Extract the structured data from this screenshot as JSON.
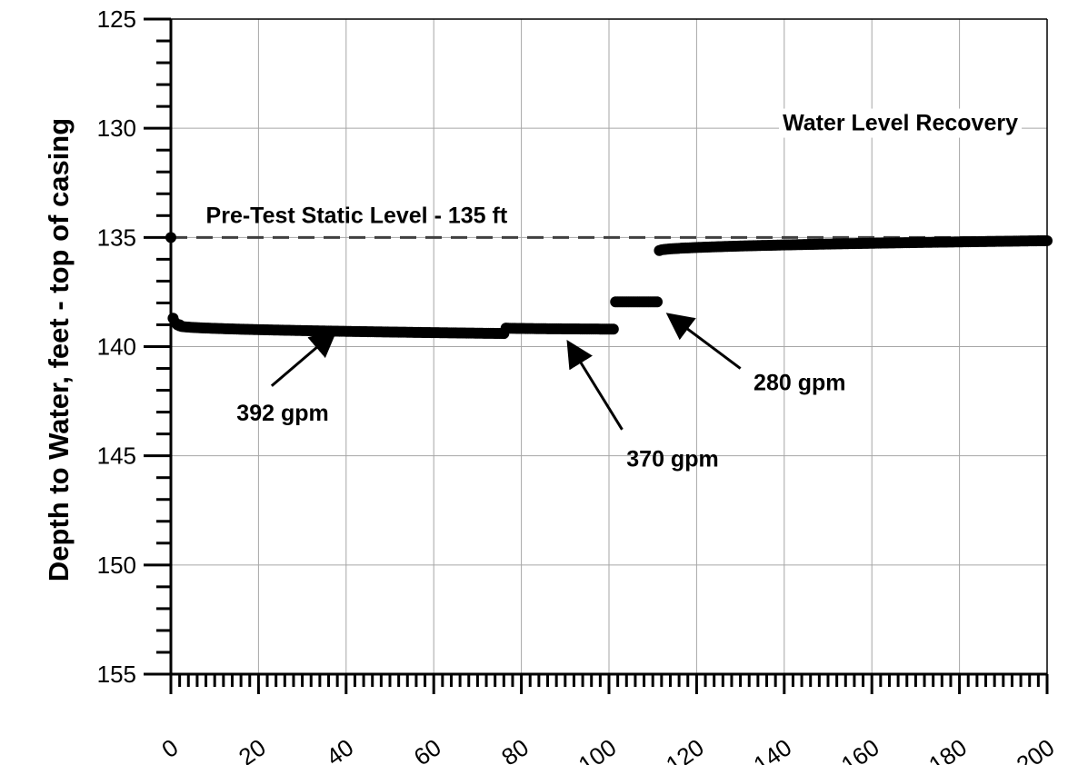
{
  "chart_data": {
    "type": "scatter",
    "title": "",
    "xlabel": "",
    "ylabel": "Depth to Water, feet - top of casing",
    "xlim": [
      0,
      200
    ],
    "ylim": [
      125,
      155
    ],
    "y_inverted": true,
    "x_ticks": [
      "0",
      "20",
      "40",
      "60",
      "80",
      "100",
      "120",
      "140",
      "160",
      "180",
      "200"
    ],
    "y_ticks": [
      "125",
      "130",
      "135",
      "140",
      "145",
      "150",
      "155"
    ],
    "x_minor_step": 2,
    "y_minor_step": 1,
    "grid": true,
    "legend": "none",
    "marker_color": "#000000",
    "reference_line": {
      "label": "Pre-Test Static Level - 135 ft",
      "y": 135,
      "color": "#404040",
      "style": "dashed"
    },
    "series": [
      {
        "points": [
          [
            0,
            135.0
          ],
          [
            0.5,
            138.7
          ],
          [
            1,
            138.9
          ],
          [
            1.5,
            139.0
          ],
          [
            2,
            139.0
          ]
        ]
      },
      {
        "range": [
          2,
          76
        ],
        "y_start": 139.05,
        "y_end": 139.4,
        "step": 0.5
      },
      {
        "range": [
          76.5,
          101
        ],
        "y_start": 139.15,
        "y_end": 139.2,
        "step": 0.5
      },
      {
        "range": [
          101.5,
          111
        ],
        "y_start": 137.95,
        "y_end": 137.95,
        "step": 0.5
      },
      {
        "range": [
          111.5,
          200
        ],
        "y_start": 135.6,
        "y_end": 135.15,
        "step": 0.5
      }
    ],
    "annotations": [
      {
        "text": "392 gpm",
        "x": 15,
        "y": 143.4,
        "arrow_from": [
          23,
          141.8
        ],
        "arrow_to": [
          37,
          139.4
        ]
      },
      {
        "text": "370 gpm",
        "x": 104,
        "y": 145.5,
        "arrow_from": [
          103,
          143.8
        ],
        "arrow_to": [
          91,
          139.9
        ]
      },
      {
        "text": "280 gpm",
        "x": 133,
        "y": 142.0,
        "arrow_from": [
          130,
          141.0
        ],
        "arrow_to": [
          114,
          138.6
        ]
      },
      {
        "text": "Water Level Recovery",
        "x": 173,
        "y": 130.1
      }
    ]
  }
}
